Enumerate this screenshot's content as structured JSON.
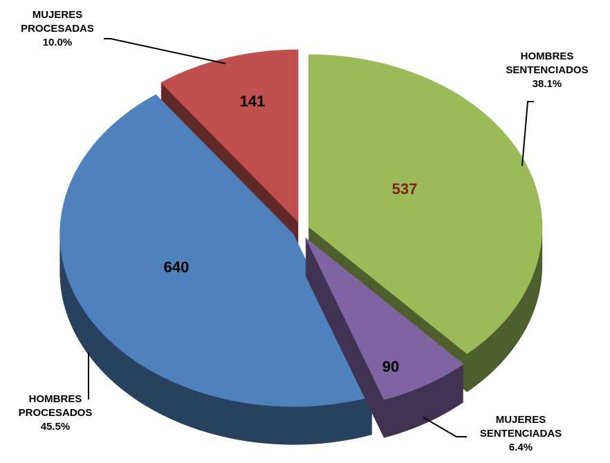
{
  "chart_data": {
    "type": "pie",
    "categories": [
      "HOMBRES SENTENCIADOS",
      "MUJERES SENTENCIADAS",
      "HOMBRES PROCESADOS",
      "MUJERES PROCESADAS"
    ],
    "values": [
      537,
      90,
      640,
      141
    ],
    "percent_labels": [
      "38.1%",
      "6.4%",
      "45.5%",
      "10.0%"
    ],
    "colors": [
      "#9bbb59",
      "#8064a2",
      "#4f81bd",
      "#c0504d"
    ]
  }
}
